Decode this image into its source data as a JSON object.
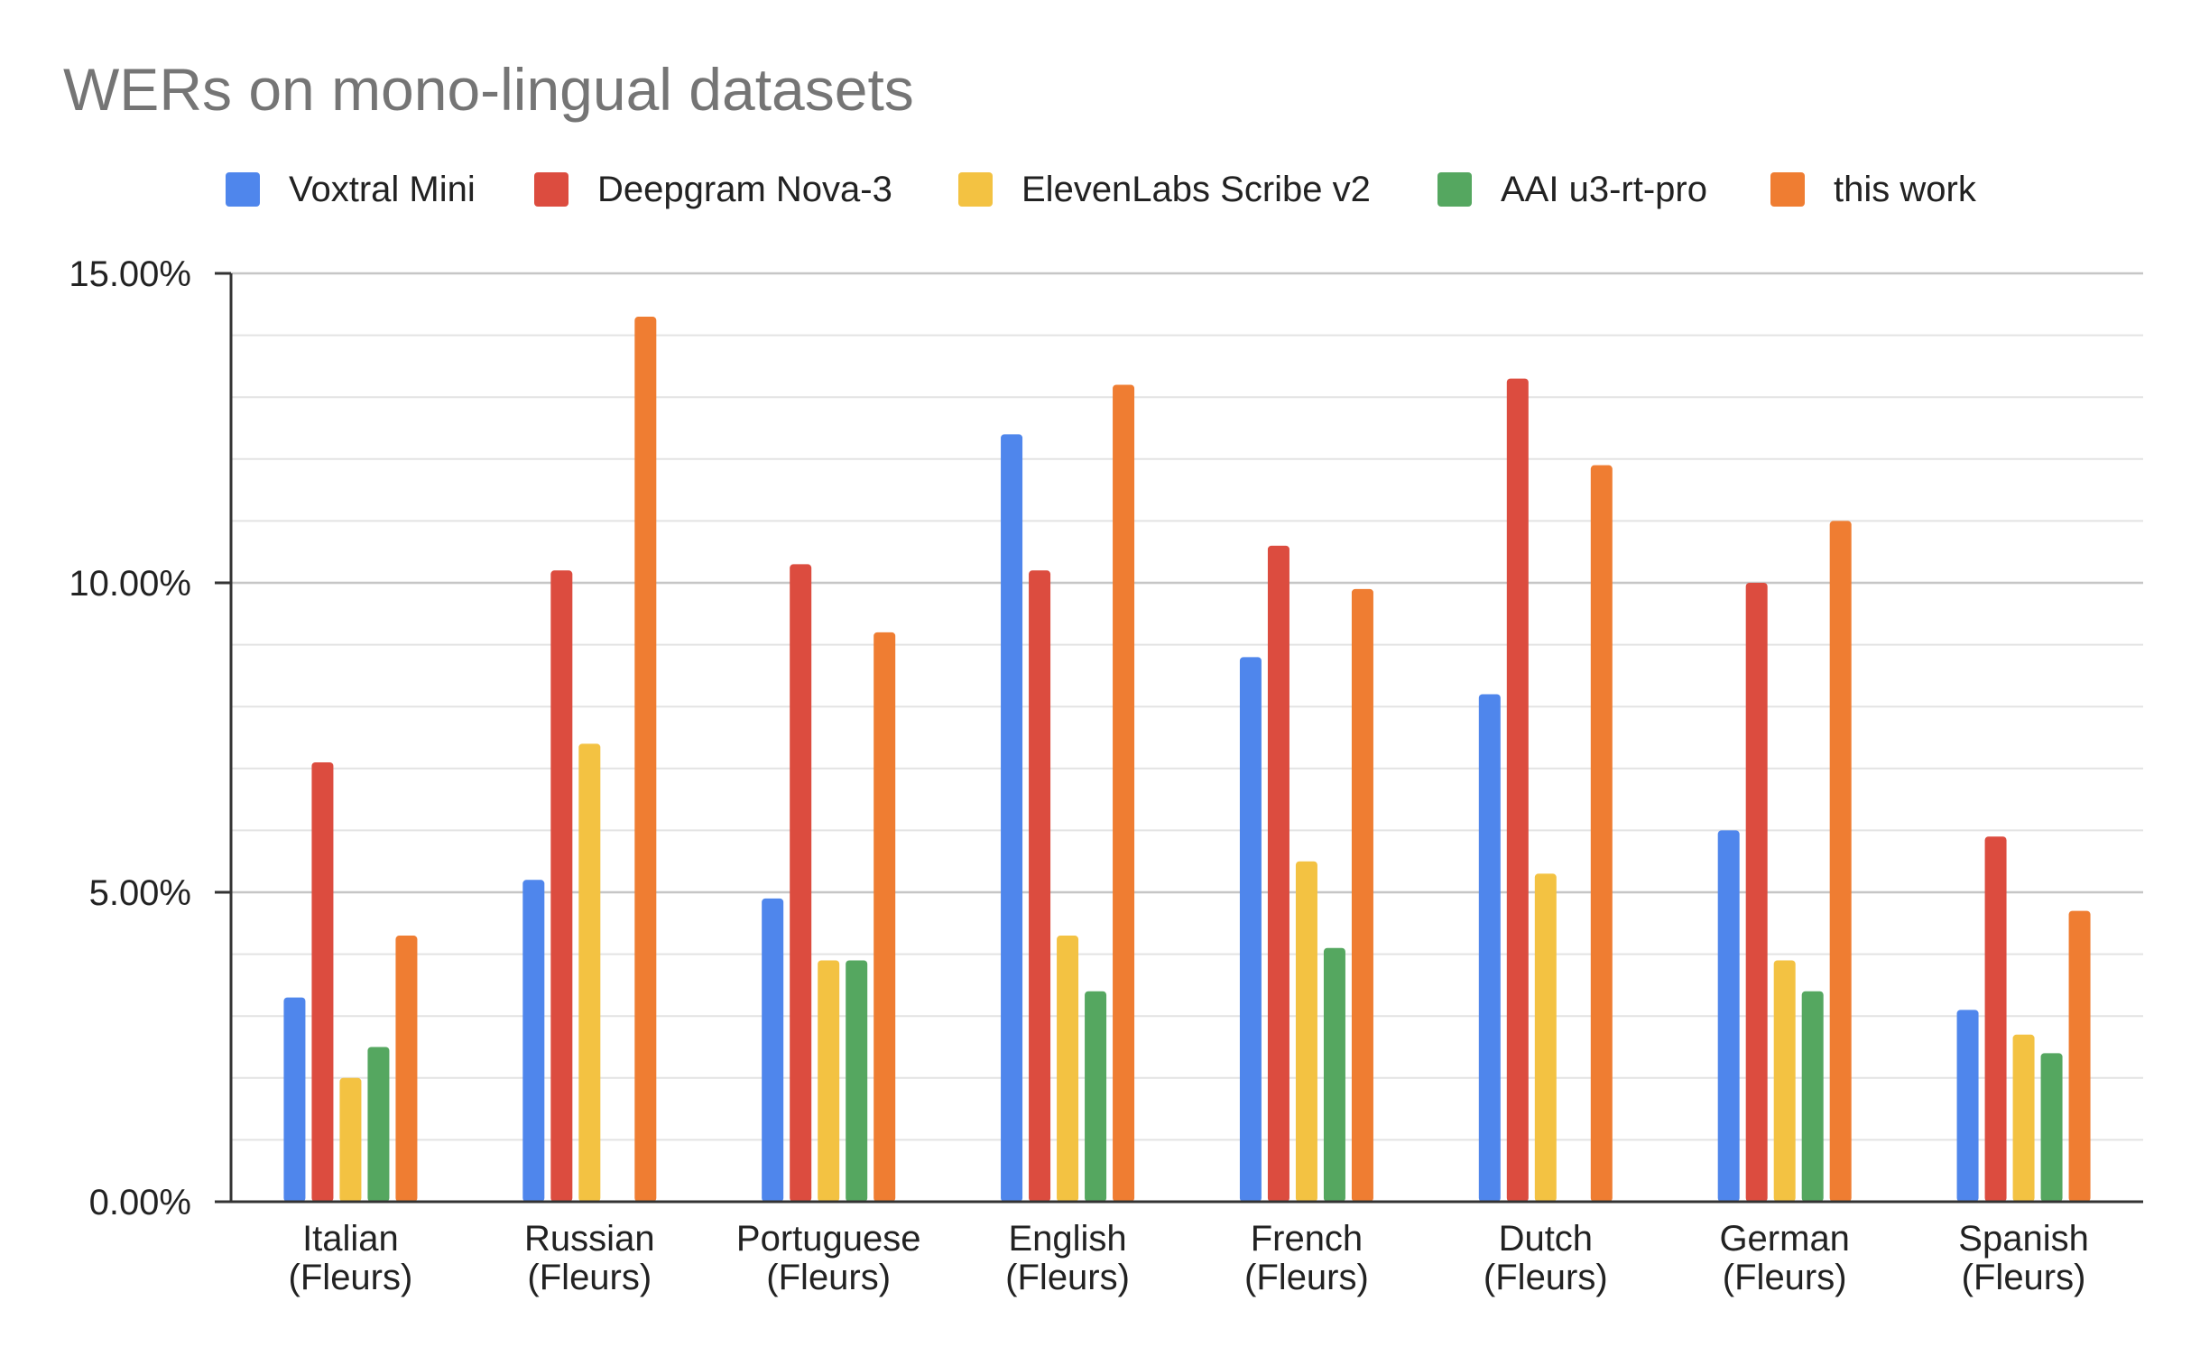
{
  "chart_data": {
    "type": "bar",
    "title": "WERs on mono-lingual datasets",
    "xlabel": "",
    "ylabel": "",
    "ylim": [
      0,
      15
    ],
    "yticks": [
      "0.00%",
      "5.00%",
      "10.00%",
      "15.00%"
    ],
    "ytick_values": [
      0,
      5,
      10,
      15
    ],
    "minor_grid_step": 1,
    "grid": true,
    "legend_position": "top",
    "categories": [
      [
        "Italian",
        "(Fleurs)"
      ],
      [
        "Russian",
        "(Fleurs)"
      ],
      [
        "Portuguese",
        "(Fleurs)"
      ],
      [
        "English",
        "(Fleurs)"
      ],
      [
        "French",
        "(Fleurs)"
      ],
      [
        "Dutch",
        "(Fleurs)"
      ],
      [
        "German",
        "(Fleurs)"
      ],
      [
        "Spanish",
        "(Fleurs)"
      ]
    ],
    "series": [
      {
        "name": "Voxtral Mini",
        "color": "#4f86ec",
        "values": [
          3.3,
          5.2,
          4.9,
          12.4,
          8.8,
          8.2,
          6.0,
          3.1
        ]
      },
      {
        "name": "Deepgram Nova-3",
        "color": "#dc4c3f",
        "values": [
          7.1,
          10.2,
          10.3,
          10.2,
          10.6,
          13.3,
          10.0,
          5.9
        ]
      },
      {
        "name": "ElevenLabs Scribe v2",
        "color": "#f3c242",
        "values": [
          2.0,
          7.4,
          3.9,
          4.3,
          5.5,
          5.3,
          3.9,
          2.7
        ]
      },
      {
        "name": "AAI u3-rt-pro",
        "color": "#55a760",
        "values": [
          2.5,
          null,
          3.9,
          3.4,
          4.1,
          null,
          3.4,
          2.4
        ]
      },
      {
        "name": "this work",
        "color": "#ef7d32",
        "values": [
          4.3,
          14.3,
          9.2,
          13.2,
          9.9,
          11.9,
          11.0,
          4.7
        ]
      }
    ]
  }
}
